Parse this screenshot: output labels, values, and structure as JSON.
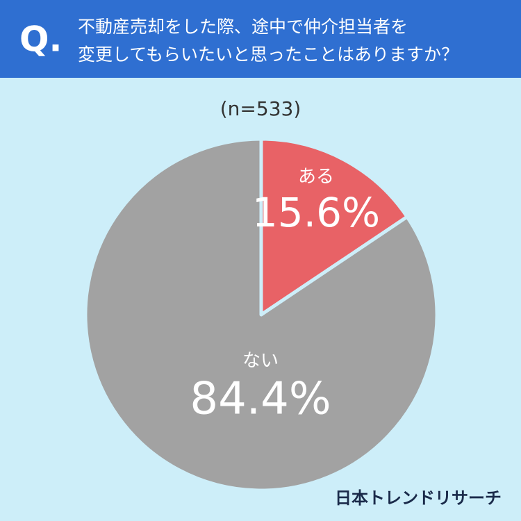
{
  "chart_data": {
    "type": "pie",
    "question_mark": "Q.",
    "title": [
      "不動産売却をした際、途中で仲介担当者を",
      "変更してもらいたいと思ったことはありますか？"
    ],
    "subtitle": "(n=533)",
    "categories": [
      "ある",
      "ない"
    ],
    "values": [
      15.6,
      84.4
    ],
    "value_labels": [
      "15.6%",
      "84.4%"
    ],
    "colors": [
      "#e86266",
      "#a2a2a2"
    ],
    "brand": "日本トレンドリサーチ"
  }
}
